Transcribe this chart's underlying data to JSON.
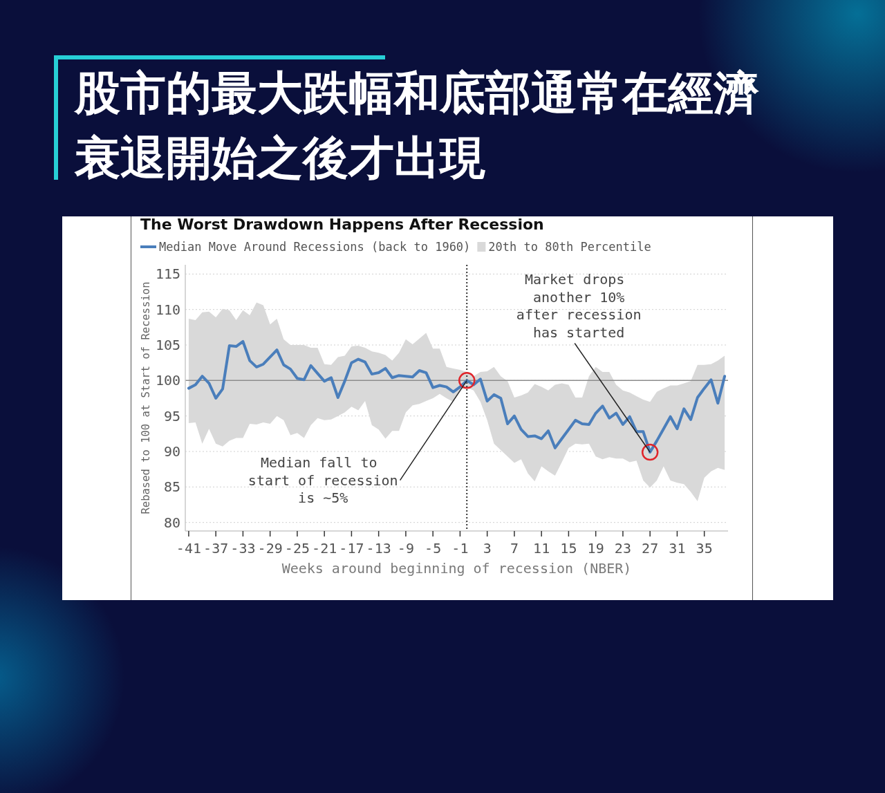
{
  "chart_data": {
    "type": "line",
    "title": "股市的最大跌幅和底部通常在經濟衰退開始之後才出現",
    "subtitle": "The Worst Drawdown Happens After Recession",
    "xlabel": "Weeks around beginning of recession (NBER)",
    "ylabel": "Rebased to 100 at Start of Recession",
    "x": [
      -41,
      -40,
      -39,
      -38,
      -37,
      -36,
      -35,
      -34,
      -33,
      -32,
      -31,
      -30,
      -29,
      -28,
      -27,
      -26,
      -25,
      -24,
      -23,
      -22,
      -21,
      -20,
      -19,
      -18,
      -17,
      -16,
      -15,
      -14,
      -13,
      -12,
      -11,
      -10,
      -9,
      -8,
      -7,
      -6,
      -5,
      -4,
      -3,
      -2,
      -1,
      0,
      1,
      2,
      3,
      4,
      5,
      6,
      7,
      8,
      9,
      10,
      11,
      12,
      13,
      14,
      15,
      16,
      17,
      18,
      19,
      20,
      21,
      22,
      23,
      24,
      25,
      26,
      27,
      28,
      29,
      30,
      31,
      32,
      33,
      34,
      35,
      36,
      37,
      38
    ],
    "series": [
      {
        "name": "Median Move Around Recessions (back to 1960)",
        "color": "#4a7ebb",
        "values": [
          98.9,
          99.4,
          100.6,
          99.6,
          97.5,
          98.8,
          104.9,
          104.8,
          105.5,
          102.8,
          101.9,
          102.3,
          103.3,
          104.3,
          102.2,
          101.6,
          100.3,
          100.1,
          102.1,
          101.0,
          99.9,
          100.4,
          97.6,
          99.9,
          102.5,
          103.0,
          102.6,
          100.9,
          101.1,
          101.7,
          100.4,
          100.7,
          100.6,
          100.5,
          101.4,
          101.1,
          99.0,
          99.3,
          99.1,
          98.4,
          99.1,
          100.0,
          99.4,
          100.2,
          97.1,
          98.0,
          97.5,
          93.9,
          95.0,
          93.1,
          92.1,
          92.2,
          91.8,
          92.9,
          90.5,
          91.8,
          93.1,
          94.4,
          93.9,
          93.8,
          95.4,
          96.4,
          94.7,
          95.4,
          93.8,
          94.9,
          92.8,
          92.8,
          89.9,
          91.5,
          93.2,
          94.9,
          93.2,
          96.0,
          94.5,
          97.6,
          98.9,
          100.1,
          96.8,
          100.6
        ]
      },
      {
        "type": "area",
        "name": "20th to 80th Percentile",
        "color": "#d9d9d9",
        "values": [
          null,
          null,
          null,
          null,
          null,
          null,
          null,
          null,
          null,
          null,
          null,
          null,
          null,
          null,
          null,
          null,
          null,
          null,
          null,
          null,
          null,
          null,
          null,
          null,
          null,
          null,
          null,
          null,
          null,
          null,
          null,
          null,
          null,
          null,
          null,
          null,
          null,
          null,
          null,
          null,
          null,
          null,
          null,
          null,
          null,
          null,
          null,
          null,
          null,
          null,
          null,
          null,
          null,
          null,
          null,
          null,
          null,
          null,
          null,
          null,
          null,
          null,
          null,
          null,
          null,
          null,
          null,
          null,
          null,
          null,
          null,
          null,
          null,
          null,
          null,
          null,
          null,
          null,
          null,
          null
        ],
        "upper": [
          108.7,
          108.5,
          109.6,
          109.7,
          108.9,
          110.1,
          109.9,
          108.5,
          109.9,
          109.2,
          111.0,
          110.6,
          107.9,
          108.7,
          105.8,
          105.0,
          105.0,
          105.0,
          104.6,
          104.6,
          102.3,
          102.2,
          103.3,
          103.5,
          104.8,
          104.9,
          104.6,
          104.1,
          103.9,
          103.6,
          102.8,
          103.9,
          105.8,
          105.1,
          105.9,
          106.7,
          104.5,
          104.5,
          101.9,
          101.7,
          101.5,
          101.2,
          100.6,
          101.2,
          101.3,
          101.9,
          100.6,
          99.9,
          97.6,
          97.9,
          98.3,
          99.5,
          99.1,
          98.6,
          99.4,
          99.6,
          99.4,
          97.6,
          97.6,
          100.6,
          101.9,
          101.2,
          101.2,
          99.4,
          98.6,
          98.3,
          97.8,
          97.3,
          97.0,
          98.4,
          98.9,
          99.3,
          99.3,
          99.6,
          99.9,
          102.2,
          102.2,
          102.3,
          102.8,
          103.5
        ],
        "lower": [
          94.0,
          94.1,
          91.1,
          93.2,
          91.1,
          90.7,
          91.5,
          91.9,
          91.9,
          93.9,
          93.8,
          94.1,
          93.9,
          95.0,
          94.4,
          92.3,
          92.6,
          91.9,
          93.7,
          94.7,
          94.4,
          94.5,
          95.0,
          95.5,
          96.3,
          95.8,
          97.1,
          93.7,
          93.1,
          91.8,
          92.9,
          92.9,
          95.5,
          96.5,
          96.7,
          97.1,
          97.5,
          98.1,
          97.5,
          97.0,
          98.7,
          99.0,
          98.6,
          97.0,
          94.4,
          91.1,
          90.2,
          89.3,
          88.4,
          88.9,
          86.9,
          85.8,
          87.9,
          87.2,
          86.6,
          88.5,
          90.5,
          91.1,
          91.0,
          91.1,
          89.3,
          88.9,
          89.2,
          89.0,
          89.0,
          88.5,
          88.7,
          85.9,
          84.9,
          85.9,
          87.9,
          85.9,
          85.6,
          85.4,
          84.3,
          83.0,
          86.3,
          87.2,
          87.7,
          87.4
        ]
      },
      {
        "type": "scatter",
        "color": "#e0252b",
        "marker": "circle",
        "x": [
          0,
          27
        ],
        "values": [
          100.0,
          89.9
        ]
      }
    ],
    "xlim": [
      -41.5,
      38.5
    ],
    "ylim": [
      78.8,
      116.3
    ],
    "xticks": [
      -41,
      -37,
      -33,
      -29,
      -25,
      -21,
      -17,
      -13,
      -9,
      -5,
      -1,
      3,
      7,
      11,
      15,
      19,
      23,
      27,
      31,
      35
    ],
    "yticks": [
      80,
      85,
      90,
      95,
      100,
      105,
      110,
      115
    ],
    "grid": "y",
    "legend": "top",
    "ref_lines": [
      {
        "axis": "y",
        "value": 100,
        "color": "#8c8c8c",
        "line_style": "solid"
      },
      {
        "axis": "x",
        "value": 0,
        "color": "#333333",
        "line_style": "dotted"
      }
    ],
    "annotations": [
      {
        "text": "Median fall to start of recession is ~5%",
        "x": 0,
        "y": 100.0
      },
      {
        "text": "Market drops another 10% after recession has started",
        "x": 27,
        "y": 89.9
      }
    ]
  }
}
